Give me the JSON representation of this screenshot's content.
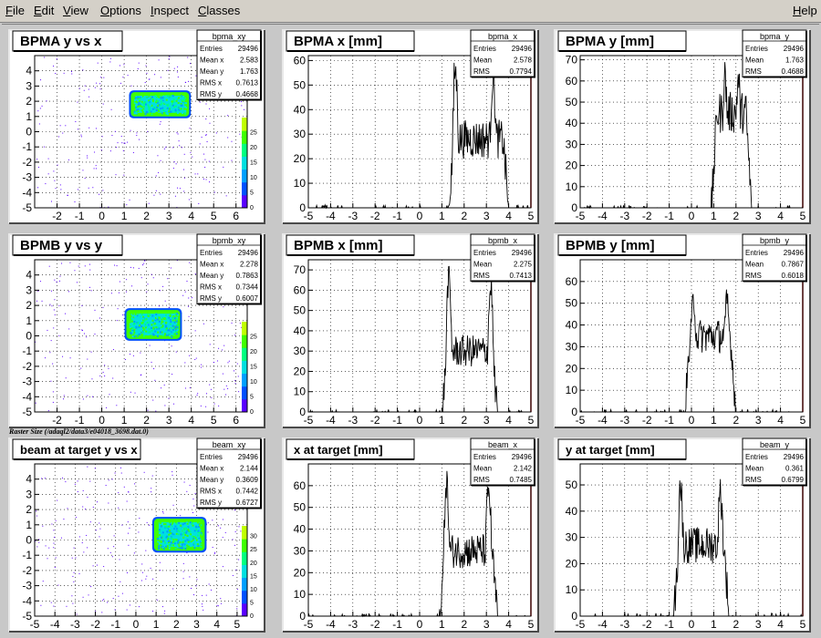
{
  "menubar": {
    "items": [
      {
        "label": "File",
        "key": "F",
        "rest": "ile"
      },
      {
        "label": "Edit",
        "key": "E",
        "rest": "dit"
      },
      {
        "label": "View",
        "key": "V",
        "rest": "iew"
      },
      {
        "label": "Options",
        "key": "O",
        "rest": "ptions"
      },
      {
        "label": "Inspect",
        "key": "I",
        "rest": "nspect"
      },
      {
        "label": "Classes",
        "key": "C",
        "rest": "lasses"
      }
    ],
    "help": {
      "label": "Help",
      "key": "H",
      "rest": "elp"
    }
  },
  "canvas": {
    "raster_label": "Raster Size (/adaql2/data3/e04018_3698.dat.0)"
  },
  "colors": {
    "pad_bg": "#ffffff",
    "canvas_bg": "#c8c8c8",
    "frame_dark": "#4a4a4a",
    "frame_light": "#e8e8e8",
    "hist_line": "#000000",
    "axis_red": "#b00000",
    "grid": "#000000",
    "palette": [
      "#5a00ff",
      "#0050ff",
      "#00a0ff",
      "#00e0e0",
      "#00ff80",
      "#40ff00",
      "#c0ff00"
    ]
  },
  "chart_data": [
    {
      "id": "bpma_xy",
      "type": "heatmap",
      "title": "BPMA y vs x",
      "stats": {
        "name": "bpma_xy",
        "rows": [
          [
            "Entries",
            "29496"
          ],
          [
            "Mean x",
            "2.583"
          ],
          [
            "Mean y",
            "1.763"
          ],
          [
            "RMS x",
            "0.7613"
          ],
          [
            "RMS y",
            "0.4668"
          ]
        ]
      },
      "xlim": [
        -3,
        6.5
      ],
      "ylim": [
        -5,
        5
      ],
      "xticks": [
        -2,
        -1,
        0,
        1,
        2,
        3,
        4,
        5,
        6
      ],
      "yticks": [
        -5,
        -4,
        -3,
        -2,
        -1,
        0,
        1,
        2,
        3,
        4
      ],
      "blob": {
        "x": [
          1.3,
          3.9
        ],
        "y": [
          1.0,
          2.6
        ]
      },
      "palette_ticks": [
        0,
        5,
        10,
        15,
        20,
        25
      ],
      "palette_max": 30
    },
    {
      "id": "bpma_x",
      "type": "line",
      "title": "BPMA x [mm]",
      "stats": {
        "name": "bpma_x",
        "rows": [
          [
            "Entries",
            "29496"
          ],
          [
            "Mean",
            "2.578"
          ],
          [
            "RMS",
            "0.7794"
          ]
        ]
      },
      "xlim": [
        -5,
        5
      ],
      "ylim": [
        0,
        62
      ],
      "xticks": [
        -5,
        -4,
        -3,
        -2,
        -1,
        0,
        1,
        2,
        3,
        4,
        5
      ],
      "yticks": [
        0,
        10,
        20,
        30,
        40,
        50,
        60
      ],
      "profile": {
        "lo": 1.3,
        "hi": 4.0,
        "peak1": 1.6,
        "peak2": 3.3,
        "h1": 56,
        "h2": 54,
        "valley": 28,
        "noise": 8
      }
    },
    {
      "id": "bpma_y",
      "type": "line",
      "title": "BPMA y [mm]",
      "stats": {
        "name": "bpma_y",
        "rows": [
          [
            "Entries",
            "29496"
          ],
          [
            "Mean",
            "1.763"
          ],
          [
            "RMS",
            "0.4688"
          ]
        ]
      },
      "xlim": [
        -5,
        5
      ],
      "ylim": [
        0,
        72
      ],
      "xticks": [
        -5,
        -4,
        -3,
        -2,
        -1,
        0,
        1,
        2,
        3,
        4,
        5
      ],
      "yticks": [
        0,
        10,
        20,
        30,
        40,
        50,
        60,
        70
      ],
      "profile": {
        "lo": 0.9,
        "hi": 2.7,
        "peak1": 1.5,
        "peak2": 2.1,
        "h1": 62,
        "h2": 60,
        "valley": 45,
        "noise": 10
      }
    },
    {
      "id": "bpmb_xy",
      "type": "heatmap",
      "title": "BPMB y vs y",
      "stats": {
        "name": "bpmb_xy",
        "rows": [
          [
            "Entries",
            "29496"
          ],
          [
            "Mean x",
            "2.278"
          ],
          [
            "Mean y",
            "0.7863"
          ],
          [
            "RMS x",
            "0.7344"
          ],
          [
            "RMS y",
            "0.6007"
          ]
        ]
      },
      "xlim": [
        -3,
        6.5
      ],
      "ylim": [
        -5,
        5
      ],
      "xticks": [
        -2,
        -1,
        0,
        1,
        2,
        3,
        4,
        5,
        6
      ],
      "yticks": [
        -5,
        -4,
        -3,
        -2,
        -1,
        0,
        1,
        2,
        3,
        4
      ],
      "blob": {
        "x": [
          1.1,
          3.5
        ],
        "y": [
          -0.2,
          1.7
        ]
      },
      "palette_ticks": [
        0,
        5,
        10,
        15,
        20,
        25
      ],
      "palette_max": 30
    },
    {
      "id": "bpmb_x",
      "type": "line",
      "title": "BPMB x [mm]",
      "stats": {
        "name": "bpmb_x",
        "rows": [
          [
            "Entries",
            "29496"
          ],
          [
            "Mean",
            "2.275"
          ],
          [
            "RMS",
            "0.7413"
          ]
        ]
      },
      "xlim": [
        -5,
        5
      ],
      "ylim": [
        0,
        75
      ],
      "xticks": [
        -5,
        -4,
        -3,
        -2,
        -1,
        0,
        1,
        2,
        3,
        4,
        5
      ],
      "yticks": [
        0,
        10,
        20,
        30,
        40,
        50,
        60,
        70
      ],
      "profile": {
        "lo": 1.0,
        "hi": 3.5,
        "peak1": 1.3,
        "peak2": 3.2,
        "h1": 65,
        "h2": 62,
        "valley": 30,
        "noise": 8
      }
    },
    {
      "id": "bpmb_y",
      "type": "line",
      "title": "BPMB y [mm]",
      "stats": {
        "name": "bpmb_y",
        "rows": [
          [
            "Entries",
            "29496"
          ],
          [
            "Mean",
            "0.7867"
          ],
          [
            "RMS",
            "0.6018"
          ]
        ]
      },
      "xlim": [
        -5,
        5
      ],
      "ylim": [
        0,
        70
      ],
      "xticks": [
        -5,
        -4,
        -3,
        -2,
        -1,
        0,
        1,
        2,
        3,
        4,
        5
      ],
      "yticks": [
        0,
        10,
        20,
        30,
        40,
        50,
        60
      ],
      "profile": {
        "lo": -0.3,
        "hi": 2.0,
        "peak1": 0.1,
        "peak2": 1.6,
        "h1": 52,
        "h2": 50,
        "valley": 35,
        "noise": 8
      }
    },
    {
      "id": "beam_xy",
      "type": "heatmap",
      "title": "beam at target y vs x",
      "stats": {
        "name": "beam_xy",
        "rows": [
          [
            "Entries",
            "29496"
          ],
          [
            "Mean x",
            "2.144"
          ],
          [
            "Mean y",
            "0.3609"
          ],
          [
            "RMS x",
            "0.7442"
          ],
          [
            "RMS y",
            "0.6727"
          ]
        ]
      },
      "xlim": [
        -5,
        5.5
      ],
      "ylim": [
        -5,
        5
      ],
      "xticks": [
        -5,
        -4,
        -3,
        -2,
        -1,
        0,
        1,
        2,
        3,
        4,
        5
      ],
      "yticks": [
        -5,
        -4,
        -3,
        -2,
        -1,
        0,
        1,
        2,
        3,
        4
      ],
      "blob": {
        "x": [
          0.9,
          3.4
        ],
        "y": [
          -0.7,
          1.4
        ]
      },
      "palette_ticks": [
        0,
        5,
        10,
        15,
        20,
        25,
        30
      ],
      "palette_max": 34
    },
    {
      "id": "beam_x",
      "type": "line",
      "title": "x at target [mm]",
      "stats": {
        "name": "beam_x",
        "rows": [
          [
            "Entries",
            "29496"
          ],
          [
            "Mean",
            "2.142"
          ],
          [
            "RMS",
            "0.7485"
          ]
        ]
      },
      "xlim": [
        -5,
        5
      ],
      "ylim": [
        0,
        70
      ],
      "xticks": [
        -5,
        -4,
        -3,
        -2,
        -1,
        0,
        1,
        2,
        3,
        4,
        5
      ],
      "yticks": [
        0,
        10,
        20,
        30,
        40,
        50,
        60
      ],
      "profile": {
        "lo": 0.9,
        "hi": 3.5,
        "peak1": 1.2,
        "peak2": 3.1,
        "h1": 62,
        "h2": 58,
        "valley": 30,
        "noise": 8
      }
    },
    {
      "id": "beam_y",
      "type": "line",
      "title": "y at target [mm]",
      "stats": {
        "name": "beam_y",
        "rows": [
          [
            "Entries",
            "29496"
          ],
          [
            "Mean",
            "0.361"
          ],
          [
            "RMS",
            "0.6799"
          ]
        ]
      },
      "xlim": [
        -5,
        5
      ],
      "ylim": [
        0,
        58
      ],
      "xticks": [
        -5,
        -4,
        -3,
        -2,
        -1,
        0,
        1,
        2,
        3,
        4,
        5
      ],
      "yticks": [
        0,
        10,
        20,
        30,
        40,
        50
      ],
      "profile": {
        "lo": -0.8,
        "hi": 1.7,
        "peak1": -0.5,
        "peak2": 1.3,
        "h1": 50,
        "h2": 47,
        "valley": 27,
        "noise": 7
      }
    }
  ]
}
